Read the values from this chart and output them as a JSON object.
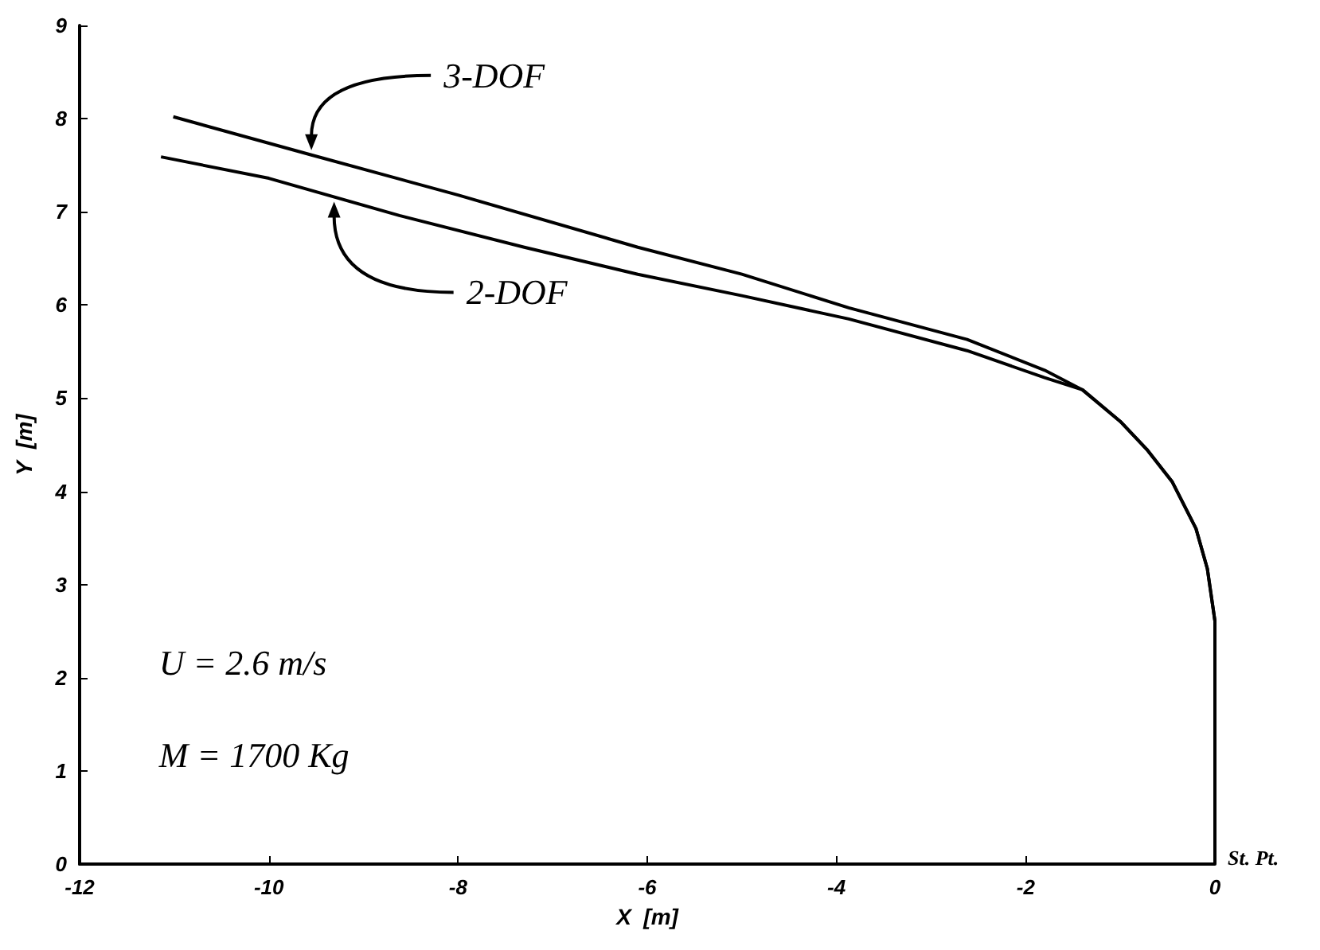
{
  "chart_data": {
    "type": "line",
    "xlabel": "X  [m]",
    "ylabel": "Y  [m]",
    "xlim": [
      -12,
      0
    ],
    "xticks": [
      -12,
      -10,
      -8,
      -6,
      -4,
      -2,
      0
    ],
    "ylim": [
      0,
      9
    ],
    "yticks": [
      0,
      1,
      2,
      3,
      4,
      5,
      6,
      7,
      8,
      9
    ],
    "grid": false,
    "legend": false,
    "marker": "none",
    "line_style": "solid",
    "series": [
      {
        "name": "3-DOF",
        "color": "#000000",
        "x": [
          -11.01,
          -9.55,
          -8,
          -6.1,
          -5,
          -3.87,
          -2.62,
          -1.8,
          -1.4,
          -1.0,
          -0.72,
          -0.45,
          -0.2,
          -0.08,
          0,
          0
        ],
        "values": [
          8.02,
          7.61,
          7.18,
          6.62,
          6.33,
          5.97,
          5.63,
          5.3,
          5.09,
          4.75,
          4.45,
          4.1,
          3.6,
          3.17,
          2.61,
          0
        ]
      },
      {
        "name": "2-DOF",
        "color": "#000000",
        "x": [
          -11.14,
          -10,
          -8.62,
          -7.3,
          -6.1,
          -5,
          -3.87,
          -2.62,
          -1.8,
          -1.4,
          -1.0,
          -0.72,
          -0.45,
          -0.2,
          -0.08,
          0,
          0
        ],
        "values": [
          7.59,
          7.36,
          6.96,
          6.62,
          6.33,
          6.1,
          5.85,
          5.51,
          5.22,
          5.09,
          4.75,
          4.45,
          4.1,
          3.6,
          3.17,
          2.61,
          0
        ]
      }
    ],
    "annotations": [
      "U = 2.6 m/s",
      "M = 1700 Kg",
      {
        "text": "St. Pt.",
        "x": 0,
        "y": 0
      }
    ]
  }
}
